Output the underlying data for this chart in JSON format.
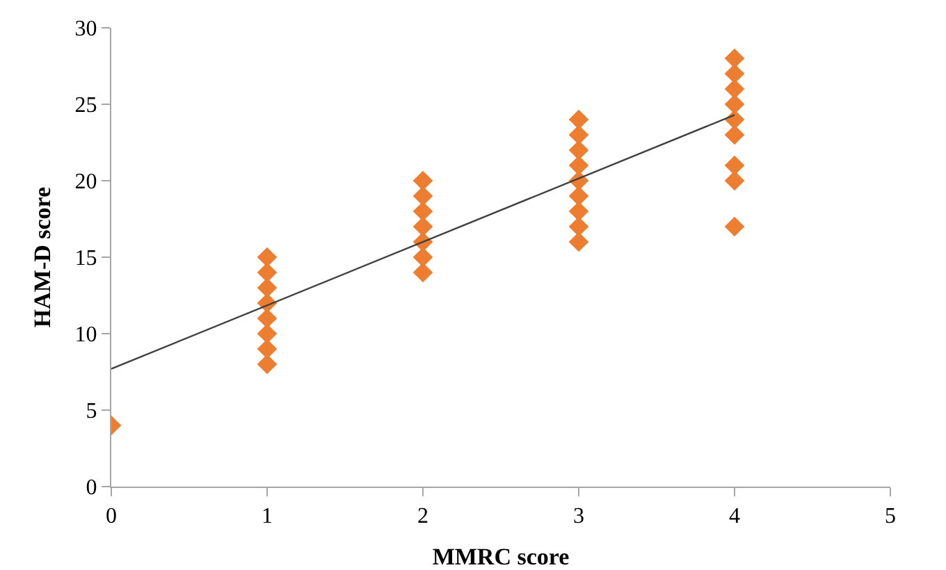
{
  "chart_data": {
    "type": "scatter",
    "xlabel": "MMRC score",
    "ylabel": "HAM-D score",
    "xlim": [
      0,
      5
    ],
    "xticks": [
      0,
      1,
      2,
      3,
      4,
      5
    ],
    "ylim": [
      0,
      30
    ],
    "yticks": [
      0,
      5,
      10,
      15,
      20,
      25,
      30
    ],
    "grid": false,
    "marker": "diamond",
    "series": [
      {
        "color": "#ed7d31",
        "x": [
          0,
          1,
          1,
          1,
          1,
          1,
          1,
          1,
          1,
          2,
          2,
          2,
          2,
          2,
          2,
          2,
          3,
          3,
          3,
          3,
          3,
          3,
          3,
          3,
          3,
          4,
          4,
          4,
          4,
          4,
          4,
          4,
          4,
          4
        ],
        "values": [
          4,
          8,
          9,
          10,
          11,
          12,
          13,
          14,
          15,
          14,
          15,
          16,
          17,
          18,
          19,
          20,
          16,
          17,
          18,
          19,
          20,
          21,
          22,
          23,
          24,
          17,
          20,
          21,
          23,
          24,
          25,
          26,
          27,
          28
        ]
      },
      {
        "type": "line",
        "marker": "none",
        "color": "#404040",
        "x": [
          0,
          4
        ],
        "values": [
          7.7,
          24.3
        ]
      }
    ]
  }
}
